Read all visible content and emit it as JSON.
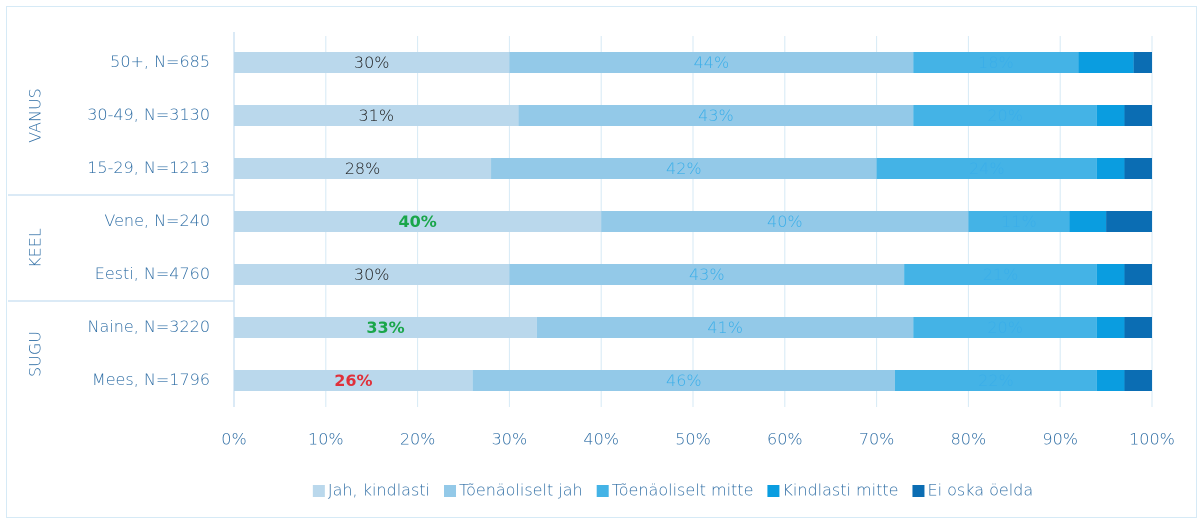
{
  "chart_data": {
    "type": "stacked-bar-horizontal",
    "groups": [
      {
        "label": "VANUS",
        "categories": [
          "50+, N=685",
          "30-49, N=3130",
          "15-29, N=1213"
        ]
      },
      {
        "label": "KEEL",
        "categories": [
          "Vene, N=240",
          "Eesti, N=4760"
        ]
      },
      {
        "label": "SUGU",
        "categories": [
          "Naine, N=3220",
          "Mees, N=1796"
        ]
      }
    ],
    "series": [
      {
        "name": "Jah, kindlasti",
        "color": "#bad8ec",
        "values": [
          30,
          31,
          28,
          40,
          30,
          33,
          26
        ],
        "value_labels": [
          "30%",
          "31%",
          "28%",
          "40%",
          "30%",
          "33%",
          "26%"
        ],
        "label_colors": [
          "#222222",
          "#222222",
          "#222222",
          "#1aa64a",
          "#222222",
          "#1aa64a",
          "#e0303a"
        ]
      },
      {
        "name": "Tõenäoliselt jah",
        "color": "#93c9e8",
        "values": [
          44,
          43,
          42,
          40,
          43,
          41,
          46
        ],
        "value_labels": [
          "44%",
          "43%",
          "42%",
          "40%",
          "43%",
          "41%",
          "46%"
        ]
      },
      {
        "name": "Tõenäoliselt mitte",
        "color": "#44b3e6",
        "values": [
          18,
          20,
          24,
          11,
          21,
          20,
          22
        ],
        "value_labels": [
          "18%",
          "20%",
          "24%",
          "11%",
          "21%",
          "20%",
          "22%"
        ]
      },
      {
        "name": "Kindlasti mitte",
        "color": "#0a9de0",
        "values": [
          6,
          3,
          3,
          4,
          3,
          3,
          3
        ]
      },
      {
        "name": "Ei oska öelda",
        "color": "#0b6db3",
        "values": [
          2,
          3,
          3,
          5,
          3,
          3,
          3
        ]
      }
    ],
    "xlim": [
      0,
      100
    ],
    "xticks": [
      {
        "value": 0,
        "label": "0%"
      },
      {
        "value": 10,
        "label": "10%"
      },
      {
        "value": 20,
        "label": "20%"
      },
      {
        "value": 30,
        "label": "30%"
      },
      {
        "value": 40,
        "label": "40%"
      },
      {
        "value": 50,
        "label": "50%"
      },
      {
        "value": 60,
        "label": "60%"
      },
      {
        "value": 70,
        "label": "70%"
      },
      {
        "value": 80,
        "label": "80%"
      },
      {
        "value": 90,
        "label": "90%"
      },
      {
        "value": 100,
        "label": "100%"
      }
    ],
    "grid": true,
    "legend": "bottom"
  }
}
